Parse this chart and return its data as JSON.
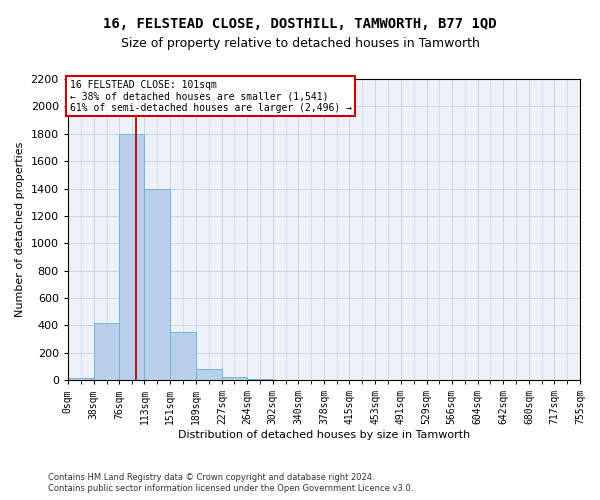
{
  "title": "16, FELSTEAD CLOSE, DOSTHILL, TAMWORTH, B77 1QD",
  "subtitle": "Size of property relative to detached houses in Tamworth",
  "xlabel": "Distribution of detached houses by size in Tamworth",
  "ylabel": "Number of detached properties",
  "footer_line1": "Contains HM Land Registry data © Crown copyright and database right 2024.",
  "footer_line2": "Contains public sector information licensed under the Open Government Licence v3.0.",
  "property_label": "16 FELSTEAD CLOSE: 101sqm",
  "annotation_line2": "← 38% of detached houses are smaller (1,541)",
  "annotation_line3": "61% of semi-detached houses are larger (2,496) →",
  "bar_edges": [
    0,
    38,
    76,
    113,
    151,
    189,
    227,
    264,
    302,
    340,
    378,
    415,
    453,
    491,
    529,
    566,
    604,
    642,
    680,
    717,
    755
  ],
  "bar_heights": [
    15,
    420,
    1800,
    1400,
    350,
    80,
    25,
    5,
    0,
    0,
    0,
    0,
    0,
    0,
    0,
    0,
    0,
    0,
    0,
    0
  ],
  "bar_color": "#b8d0ea",
  "bar_edge_color": "#6baed6",
  "grid_color": "#c8d4e8",
  "vline_color": "#bb0000",
  "vline_x": 101,
  "annotation_box_edgecolor": "#cc0000",
  "ylim": [
    0,
    2200
  ],
  "yticks": [
    0,
    200,
    400,
    600,
    800,
    1000,
    1200,
    1400,
    1600,
    1800,
    2000,
    2200
  ],
  "background_color": "#edf2f9",
  "title_fontsize": 10,
  "subtitle_fontsize": 9,
  "xlabel_fontsize": 8,
  "ylabel_fontsize": 8,
  "tick_fontsize": 7,
  "footer_fontsize": 6
}
